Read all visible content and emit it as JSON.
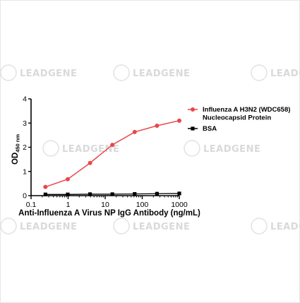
{
  "watermark": {
    "text": "LEADGENE"
  },
  "chart_data": {
    "type": "line",
    "x_scale": "log",
    "xlim": [
      0.1,
      1000
    ],
    "ylim": [
      0,
      4
    ],
    "x_ticks": [
      0.1,
      1,
      10,
      100,
      1000
    ],
    "x_tick_labels": [
      "0.1",
      "1",
      "10",
      "100",
      "1000"
    ],
    "y_ticks": [
      0,
      1,
      2,
      3,
      4
    ],
    "y_tick_labels": [
      "0",
      "1",
      "2",
      "3",
      "4"
    ],
    "xlabel": "Anti-Influenza A Virus NP IgG Antibody (ng/mL)",
    "ylabel": {
      "main": "OD",
      "sub": "450 nm"
    },
    "grid": false,
    "legend_position": "right",
    "series": [
      {
        "name": "Influenza A H3N2 (WDC658) Nucleocapsid Protein",
        "name_lines": [
          "Influenza A H3N2 (WDC658)",
          "Nucleocapsid Protein"
        ],
        "color": "#e8474a",
        "marker": "circle",
        "x": [
          0.244,
          0.977,
          3.906,
          15.625,
          62.5,
          250,
          1000
        ],
        "y": [
          0.36,
          0.68,
          1.35,
          2.1,
          2.63,
          2.89,
          3.1
        ]
      },
      {
        "name": "BSA",
        "name_lines": [
          "BSA"
        ],
        "color": "#000000",
        "marker": "square",
        "x": [
          0.244,
          0.977,
          3.906,
          15.625,
          62.5,
          250,
          1000
        ],
        "y": [
          0.05,
          0.05,
          0.06,
          0.06,
          0.07,
          0.08,
          0.09
        ]
      }
    ]
  }
}
